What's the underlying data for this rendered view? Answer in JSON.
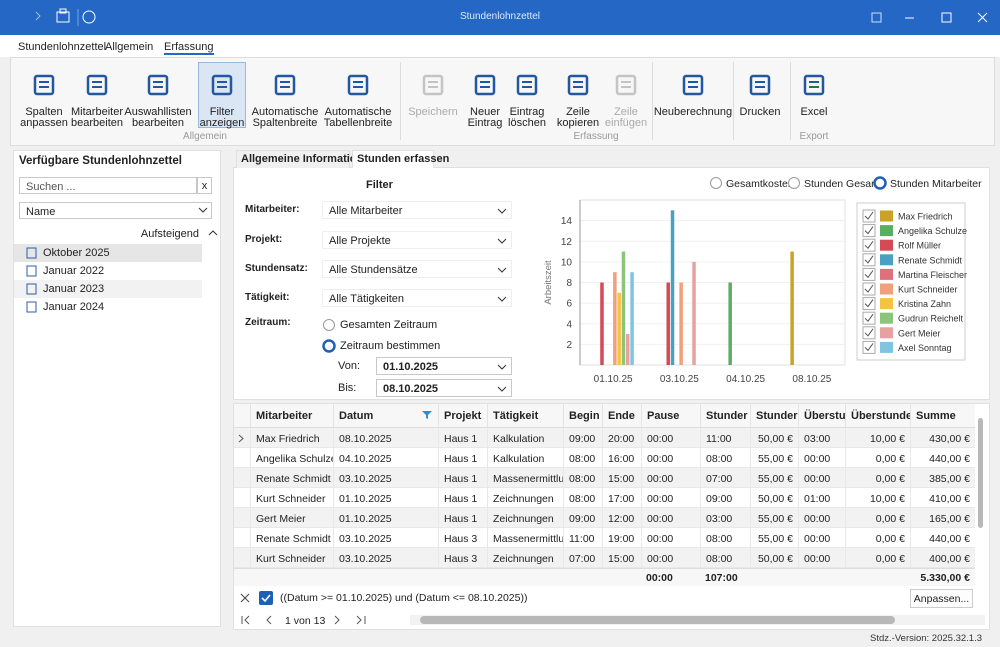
{
  "window": {
    "title": "Stundenlohnzettel"
  },
  "menu": [
    "Stundenlohnzettel",
    "Allgemein",
    "Erfassung"
  ],
  "ribbon": {
    "groups": [
      {
        "label": "Allgemein",
        "buttons": [
          {
            "lines": [
              "Spalten",
              "anpassen"
            ]
          },
          {
            "lines": [
              "Mitarbeiter",
              "bearbeiten"
            ]
          },
          {
            "lines": [
              "Auswahllisten",
              "bearbeiten"
            ]
          },
          {
            "lines": [
              "Filter",
              "anzeigen"
            ],
            "active": true
          },
          {
            "lines": [
              "Automatische",
              "Spaltenbreite"
            ]
          },
          {
            "lines": [
              "Automatische",
              "Tabellenbreite"
            ]
          }
        ]
      },
      {
        "label": "Erfassung",
        "buttons": [
          {
            "lines": [
              "Speichern"
            ],
            "disabled": true
          },
          {
            "lines": [
              "Neuer",
              "Eintrag"
            ]
          },
          {
            "lines": [
              "Eintrag",
              "löschen"
            ]
          },
          {
            "lines": [
              "Zeile",
              "kopieren"
            ]
          },
          {
            "lines": [
              "Zeile",
              "einfügen"
            ],
            "disabled": true
          },
          {
            "lines": [
              "Neuberechnung"
            ]
          },
          {
            "lines": [
              "Drucken"
            ]
          }
        ]
      },
      {
        "label": "Export",
        "buttons": [
          {
            "lines": [
              "Excel"
            ]
          }
        ]
      }
    ]
  },
  "sidebar": {
    "title": "Verfügbare Stundenlohnzettel",
    "search_placeholder": "Suchen ...",
    "clear": "x",
    "sort": "Name",
    "order": "Aufsteigend",
    "items": [
      "Oktober 2025",
      "Januar 2022",
      "Januar 2023",
      "Januar 2024"
    ]
  },
  "tabs": [
    "Allgemeine Informationen",
    "Stunden erfassen"
  ],
  "filter": {
    "title": "Filter",
    "fields": [
      {
        "label": "Mitarbeiter:",
        "value": "Alle Mitarbeiter"
      },
      {
        "label": "Projekt:",
        "value": "Alle Projekte"
      },
      {
        "label": "Stundensatz:",
        "value": "Alle Stundensätze"
      },
      {
        "label": "Tätigkeit:",
        "value": "Alle Tätigkeiten"
      }
    ],
    "period": {
      "label": "Zeitraum:",
      "options": [
        "Gesamten Zeitraum",
        "Zeitraum bestimmen"
      ],
      "from_label": "Von:",
      "from": "01.10.2025",
      "to_label": "Bis:",
      "to": "08.10.2025"
    }
  },
  "chart_data": {
    "type": "bar",
    "modes": [
      "Gesamtkosten",
      "Stunden Gesamt",
      "Stunden Mitarbeiter"
    ],
    "y_label": "Arbeitszeit",
    "categories": [
      "01.10.25",
      "03.10.25",
      "04.10.25",
      "08.10.25"
    ],
    "series": [
      {
        "name": "Max Friedrich",
        "color": "#c9a227",
        "values": [
          null,
          null,
          null,
          11
        ]
      },
      {
        "name": "Angelika Schulze",
        "color": "#5aae61",
        "values": [
          null,
          null,
          8,
          null
        ]
      },
      {
        "name": "Rolf Müller",
        "color": "#d24b55",
        "values": [
          8,
          8,
          null,
          null
        ]
      },
      {
        "name": "Renate Schmidt",
        "color": "#4aa0c0",
        "values": [
          null,
          15,
          null,
          null
        ]
      },
      {
        "name": "Martina Fleischer",
        "color": "#e0707a",
        "values": [
          null,
          null,
          null,
          null
        ]
      },
      {
        "name": "Kurt Schneider",
        "color": "#f0a07a",
        "values": [
          9,
          8,
          null,
          null
        ]
      },
      {
        "name": "Kristina Zahn",
        "color": "#f5c242",
        "values": [
          7,
          null,
          null,
          null
        ]
      },
      {
        "name": "Gudrun Reichelt",
        "color": "#8cc47a",
        "values": [
          11,
          null,
          null,
          null
        ]
      },
      {
        "name": "Gert Meier",
        "color": "#e8a0a0",
        "values": [
          3,
          10,
          null,
          null
        ]
      },
      {
        "name": "Axel Sonntag",
        "color": "#7fc4e0",
        "values": [
          9,
          null,
          null,
          null
        ]
      }
    ],
    "ylim": [
      0,
      16
    ],
    "yticks": [
      2,
      4,
      6,
      8,
      10,
      12,
      14
    ],
    "grid": true
  },
  "table": {
    "columns": [
      "Mitarbeiter",
      "Datum",
      "Projekt",
      "Tätigkeit",
      "Begin",
      "Ende",
      "Pause",
      "Stunder",
      "Stunder",
      "Überstur",
      "Überstunde",
      "Summe"
    ],
    "rows": [
      [
        "Max Friedrich",
        "08.10.2025",
        "Haus 1",
        "Kalkulation",
        "09:00",
        "20:00",
        "00:00",
        "11:00",
        "50,00 €",
        "03:00",
        "10,00 €",
        "430,00 €"
      ],
      [
        "Angelika Schulze",
        "04.10.2025",
        "Haus 1",
        "Kalkulation",
        "08:00",
        "16:00",
        "00:00",
        "08:00",
        "55,00 €",
        "00:00",
        "0,00 €",
        "440,00 €"
      ],
      [
        "Renate Schmidt",
        "03.10.2025",
        "Haus 1",
        "Massenermittlu...",
        "08:00",
        "15:00",
        "00:00",
        "07:00",
        "55,00 €",
        "00:00",
        "0,00 €",
        "385,00 €"
      ],
      [
        "Kurt Schneider",
        "01.10.2025",
        "Haus 1",
        "Zeichnungen",
        "08:00",
        "17:00",
        "00:00",
        "09:00",
        "50,00 €",
        "01:00",
        "10,00 €",
        "410,00 €"
      ],
      [
        "Gert Meier",
        "01.10.2025",
        "Haus 1",
        "Zeichnungen",
        "09:00",
        "12:00",
        "00:00",
        "03:00",
        "55,00 €",
        "00:00",
        "0,00 €",
        "165,00 €"
      ],
      [
        "Renate Schmidt",
        "03.10.2025",
        "Haus 3",
        "Massenermittlu...",
        "11:00",
        "19:00",
        "00:00",
        "08:00",
        "55,00 €",
        "00:00",
        "0,00 €",
        "440,00 €"
      ],
      [
        "Kurt Schneider",
        "03.10.2025",
        "Haus 3",
        "Zeichnungen",
        "07:00",
        "15:00",
        "00:00",
        "08:00",
        "50,00 €",
        "00:00",
        "0,00 €",
        "400,00 €"
      ]
    ],
    "totals": {
      "pause": "00:00",
      "hours": "107:00",
      "sum": "5.330,00 €"
    },
    "filter_expression": "((Datum >= 01.10.2025) und (Datum <= 08.10.2025))",
    "adjust_button": "Anpassen...",
    "pager": "1 von 13"
  },
  "status": "Stdz.-Version: 2025.32.1.3"
}
